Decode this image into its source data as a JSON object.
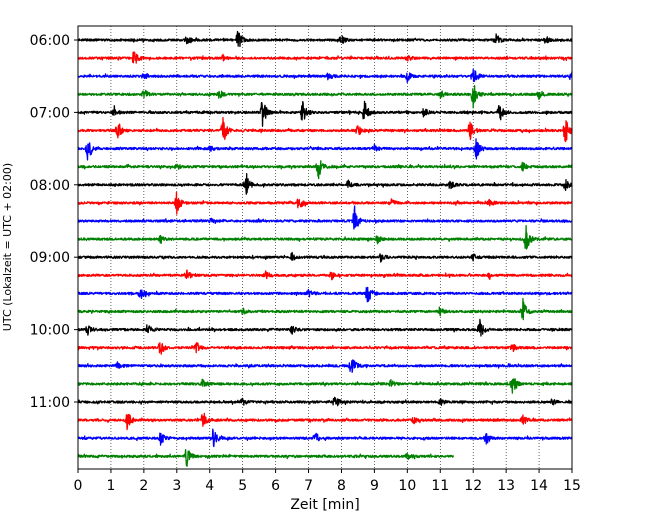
{
  "chart_data": {
    "type": "line",
    "title": "",
    "xlabel": "Zeit  [min]",
    "ylabel": "UTC (Lokalzeit = UTC + 02:00)",
    "xlim": [
      0,
      15
    ],
    "x_ticks": [
      "0",
      "1",
      "2",
      "3",
      "4",
      "5",
      "6",
      "7",
      "8",
      "9",
      "10",
      "11",
      "12",
      "13",
      "14",
      "15"
    ],
    "y_ticks": [
      {
        "label": "06:00",
        "trace": 0
      },
      {
        "label": "07:00",
        "trace": 4
      },
      {
        "label": "08:00",
        "trace": 8
      },
      {
        "label": "09:00",
        "trace": 12
      },
      {
        "label": "10:00",
        "trace": 16
      },
      {
        "label": "11:00",
        "trace": 20
      }
    ],
    "grid": "vertical dotted",
    "colors": [
      "#000000",
      "#ff0000",
      "#0000ff",
      "#008000"
    ],
    "trace_interval_min": 15,
    "series": [
      {
        "start": "06:00",
        "end_min": 15,
        "color": "#000000",
        "events": [
          [
            4.85,
            1.8
          ],
          [
            3.3,
            0.5
          ],
          [
            8.0,
            0.6
          ],
          [
            12.7,
            0.8
          ],
          [
            14.2,
            0.5
          ]
        ]
      },
      {
        "start": "06:15",
        "end_min": 15,
        "color": "#ff0000",
        "events": [
          [
            1.7,
            1.2
          ],
          [
            4.4,
            0.4
          ],
          [
            10.0,
            0.4
          ]
        ]
      },
      {
        "start": "06:30",
        "end_min": 15,
        "color": "#0000ff",
        "events": [
          [
            12.0,
            1.6
          ],
          [
            15.0,
            2.0
          ],
          [
            10.0,
            0.8
          ],
          [
            7.6,
            0.5
          ],
          [
            2.0,
            0.4
          ]
        ]
      },
      {
        "start": "06:45",
        "end_min": 15,
        "color": "#008000",
        "events": [
          [
            12.0,
            1.8
          ],
          [
            2.0,
            0.8
          ],
          [
            4.3,
            0.6
          ],
          [
            11.0,
            0.6
          ],
          [
            14.0,
            0.7
          ]
        ]
      },
      {
        "start": "07:00",
        "end_min": 15,
        "color": "#000000",
        "events": [
          [
            5.6,
            2.2
          ],
          [
            6.8,
            2.0
          ],
          [
            8.7,
            1.6
          ],
          [
            12.8,
            1.4
          ],
          [
            1.1,
            0.8
          ],
          [
            10.5,
            0.7
          ]
        ]
      },
      {
        "start": "07:15",
        "end_min": 15,
        "color": "#ff0000",
        "events": [
          [
            4.4,
            2.0
          ],
          [
            1.2,
            1.2
          ],
          [
            11.9,
            1.4
          ],
          [
            14.8,
            1.9
          ],
          [
            8.5,
            0.8
          ]
        ]
      },
      {
        "start": "07:30",
        "end_min": 15,
        "color": "#0000ff",
        "events": [
          [
            0.3,
            2.0
          ],
          [
            12.1,
            1.6
          ],
          [
            9.0,
            0.5
          ],
          [
            4.0,
            0.4
          ]
        ]
      },
      {
        "start": "07:45",
        "end_min": 15,
        "color": "#008000",
        "events": [
          [
            7.3,
            1.8
          ],
          [
            13.5,
            0.6
          ],
          [
            3.0,
            0.4
          ]
        ]
      },
      {
        "start": "08:00",
        "end_min": 15,
        "color": "#000000",
        "events": [
          [
            5.1,
            1.6
          ],
          [
            14.8,
            0.9
          ],
          [
            8.2,
            0.6
          ],
          [
            11.3,
            0.6
          ]
        ]
      },
      {
        "start": "08:15",
        "end_min": 15,
        "color": "#ff0000",
        "events": [
          [
            3.0,
            1.6
          ],
          [
            6.7,
            1.2
          ],
          [
            9.5,
            0.6
          ],
          [
            12.5,
            0.5
          ]
        ]
      },
      {
        "start": "08:30",
        "end_min": 15,
        "color": "#0000ff",
        "events": [
          [
            8.4,
            2.0
          ],
          [
            4.0,
            0.4
          ]
        ]
      },
      {
        "start": "08:45",
        "end_min": 15,
        "color": "#008000",
        "events": [
          [
            13.6,
            2.0
          ],
          [
            9.1,
            0.6
          ],
          [
            2.5,
            0.4
          ]
        ]
      },
      {
        "start": "09:00",
        "end_min": 15,
        "color": "#000000",
        "events": [
          [
            6.5,
            0.6
          ],
          [
            9.2,
            0.6
          ],
          [
            12.0,
            0.4
          ]
        ]
      },
      {
        "start": "09:15",
        "end_min": 15,
        "color": "#ff0000",
        "events": [
          [
            3.3,
            0.8
          ],
          [
            5.7,
            0.6
          ],
          [
            7.7,
            0.5
          ],
          [
            12.5,
            0.5
          ]
        ]
      },
      {
        "start": "09:30",
        "end_min": 15,
        "color": "#0000ff",
        "events": [
          [
            8.8,
            1.6
          ],
          [
            1.9,
            0.8
          ],
          [
            7.0,
            0.5
          ]
        ]
      },
      {
        "start": "09:45",
        "end_min": 15,
        "color": "#008000",
        "events": [
          [
            13.5,
            2.0
          ],
          [
            11.0,
            0.6
          ],
          [
            5.0,
            0.4
          ]
        ]
      },
      {
        "start": "10:00",
        "end_min": 15,
        "color": "#000000",
        "events": [
          [
            12.2,
            1.4
          ],
          [
            0.3,
            0.8
          ],
          [
            2.1,
            0.8
          ],
          [
            6.5,
            0.6
          ]
        ]
      },
      {
        "start": "10:15",
        "end_min": 15,
        "color": "#ff0000",
        "events": [
          [
            2.5,
            1.2
          ],
          [
            3.6,
            0.8
          ],
          [
            13.2,
            0.6
          ]
        ]
      },
      {
        "start": "10:30",
        "end_min": 15,
        "color": "#0000ff",
        "events": [
          [
            8.3,
            1.6
          ],
          [
            1.2,
            0.5
          ]
        ]
      },
      {
        "start": "10:45",
        "end_min": 15,
        "color": "#008000",
        "events": [
          [
            13.2,
            1.4
          ],
          [
            3.8,
            0.8
          ],
          [
            9.5,
            0.5
          ]
        ]
      },
      {
        "start": "11:00",
        "end_min": 15,
        "color": "#000000",
        "events": [
          [
            7.8,
            1.0
          ],
          [
            5.0,
            0.6
          ],
          [
            11.0,
            0.5
          ],
          [
            14.4,
            0.4
          ]
        ]
      },
      {
        "start": "11:15",
        "end_min": 15,
        "color": "#ff0000",
        "events": [
          [
            1.5,
            1.4
          ],
          [
            3.8,
            1.2
          ],
          [
            13.5,
            0.8
          ],
          [
            10.2,
            0.5
          ]
        ]
      },
      {
        "start": "11:30",
        "end_min": 15,
        "color": "#0000ff",
        "events": [
          [
            2.5,
            1.0
          ],
          [
            4.1,
            1.6
          ],
          [
            7.2,
            0.8
          ],
          [
            12.4,
            0.8
          ]
        ]
      },
      {
        "start": "11:45",
        "end_min": 11.4,
        "color": "#008000",
        "events": [
          [
            3.3,
            1.6
          ],
          [
            10.0,
            0.5
          ]
        ]
      }
    ]
  }
}
